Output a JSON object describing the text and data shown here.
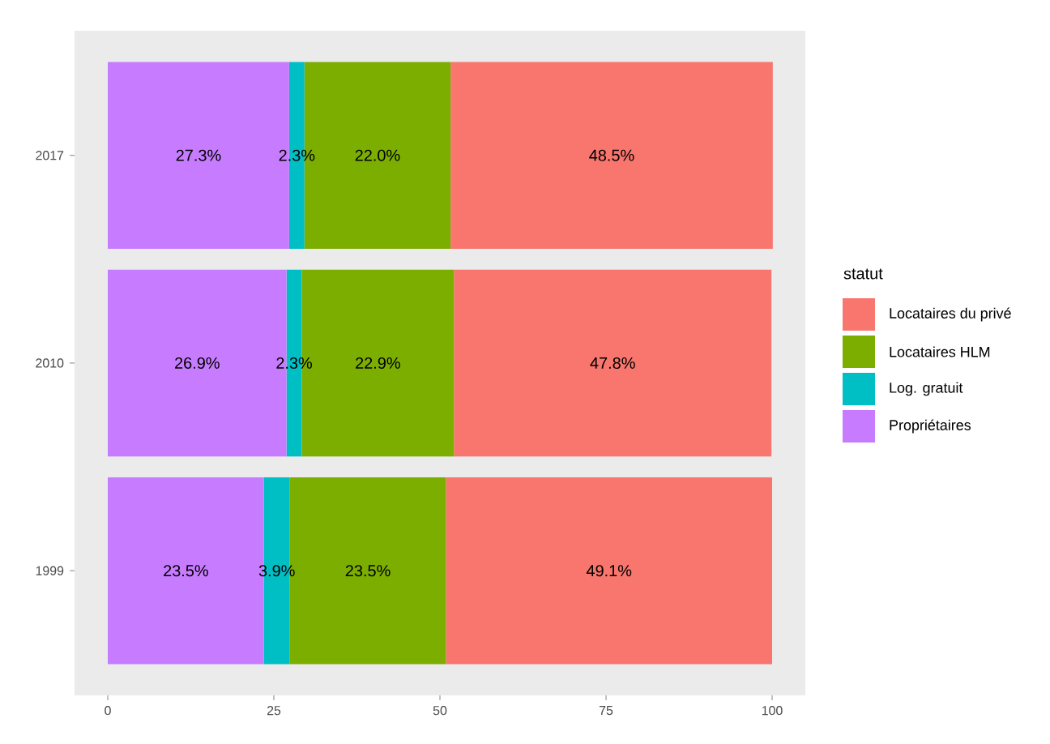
{
  "chart_data": {
    "type": "bar",
    "orientation": "horizontal",
    "stacked": true,
    "categories": [
      "2017",
      "2010",
      "1999"
    ],
    "series": [
      {
        "name": "Propriétaires",
        "color": "#c77cff",
        "values": [
          27.3,
          26.9,
          23.5
        ],
        "value_labels": [
          "27.3%",
          "26.9%",
          "23.5%"
        ]
      },
      {
        "name": "Log. gratuit",
        "color": "#00bfc4",
        "values": [
          2.3,
          2.3,
          3.9
        ],
        "value_labels": [
          "2.3%",
          "2.3%",
          "3.9%"
        ]
      },
      {
        "name": "Locataires HLM",
        "color": "#7cae00",
        "values": [
          22.0,
          22.9,
          23.5
        ],
        "value_labels": [
          "22.0%",
          "22.9%",
          "23.5%"
        ]
      },
      {
        "name": "Locataires du privé",
        "color": "#f8766d",
        "values": [
          48.5,
          47.8,
          49.1
        ],
        "value_labels": [
          "48.5%",
          "47.8%",
          "49.1%"
        ]
      }
    ],
    "xlim": [
      -5,
      105
    ],
    "xticks": [
      0,
      25,
      50,
      75,
      100
    ],
    "legend": "right",
    "legend_title": "statut"
  }
}
